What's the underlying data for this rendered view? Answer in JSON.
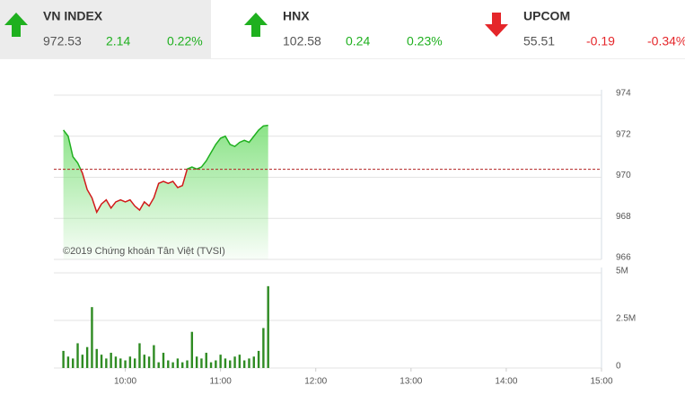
{
  "indices": [
    {
      "name": "VN INDEX",
      "value": "972.53",
      "change": "2.14",
      "percent": "0.22%",
      "direction": "up",
      "color": "#1fb01f"
    },
    {
      "name": "HNX",
      "value": "102.58",
      "change": "0.24",
      "percent": "0.23%",
      "direction": "up",
      "color": "#1fb01f"
    },
    {
      "name": "UPCOM",
      "value": "55.51",
      "change": "-0.19",
      "percent": "-0.34%",
      "direction": "down",
      "color": "#e5262a"
    }
  ],
  "chart_data": [
    {
      "type": "line",
      "annotation": "©2019 Chứng khoán Tân Việt (TVSI)",
      "x": [
        561,
        564,
        567,
        570,
        573,
        576,
        579,
        582,
        585,
        588,
        591,
        594,
        597,
        600,
        603,
        606,
        609,
        612,
        615,
        618,
        621,
        624,
        627,
        630,
        633,
        636,
        639,
        642,
        645,
        648,
        651,
        654,
        657,
        660,
        663,
        666,
        669,
        672,
        675,
        678,
        681,
        684,
        687,
        690
      ],
      "values": [
        972.3,
        972.0,
        971.0,
        970.7,
        970.2,
        969.4,
        969.0,
        968.3,
        968.7,
        968.9,
        968.5,
        968.8,
        968.9,
        968.8,
        968.9,
        968.6,
        968.4,
        968.8,
        968.6,
        969.0,
        969.7,
        969.8,
        969.7,
        969.8,
        969.5,
        969.6,
        970.4,
        970.5,
        970.4,
        970.5,
        970.8,
        971.2,
        971.6,
        971.9,
        972.0,
        971.6,
        971.5,
        971.7,
        971.8,
        971.7,
        972.0,
        972.3,
        972.5,
        972.53
      ],
      "xlim": [
        555,
        900
      ],
      "ylim": [
        966,
        974
      ],
      "yticks": [
        974,
        972,
        970,
        968,
        966
      ],
      "reference_line": 970.39,
      "reference_color": "#b22222",
      "color_above": "#1fb01f",
      "color_below": "#d11a1a",
      "fill_color": "#7ee07a",
      "grid": true
    },
    {
      "type": "bar",
      "x": [
        561,
        564,
        567,
        570,
        573,
        576,
        579,
        582,
        585,
        588,
        591,
        594,
        597,
        600,
        603,
        606,
        609,
        612,
        615,
        618,
        621,
        624,
        627,
        630,
        633,
        636,
        639,
        642,
        645,
        648,
        651,
        654,
        657,
        660,
        663,
        666,
        669,
        672,
        675,
        678,
        681,
        684,
        687,
        690
      ],
      "values": [
        900000,
        600000,
        500000,
        1300000,
        700000,
        1100000,
        3200000,
        1000000,
        700000,
        500000,
        800000,
        600000,
        500000,
        400000,
        600000,
        500000,
        1300000,
        700000,
        600000,
        1200000,
        300000,
        800000,
        400000,
        300000,
        500000,
        300000,
        400000,
        1900000,
        600000,
        500000,
        800000,
        300000,
        400000,
        700000,
        500000,
        400000,
        600000,
        700000,
        400000,
        500000,
        600000,
        900000,
        2100000,
        4300000
      ],
      "color": "#2e8b22",
      "xlim": [
        555,
        900
      ],
      "xticks": [
        {
          "value": 600,
          "label": "10:00"
        },
        {
          "value": 660,
          "label": "11:00"
        },
        {
          "value": 720,
          "label": "12:00"
        },
        {
          "value": 780,
          "label": "13:00"
        },
        {
          "value": 840,
          "label": "14:00"
        },
        {
          "value": 900,
          "label": "15:00"
        }
      ],
      "ylim": [
        0,
        5000000
      ],
      "yticks": [
        {
          "value": 5000000,
          "label": "5M"
        },
        {
          "value": 2500000,
          "label": "2.5M"
        },
        0
      ],
      "grid": true
    }
  ]
}
